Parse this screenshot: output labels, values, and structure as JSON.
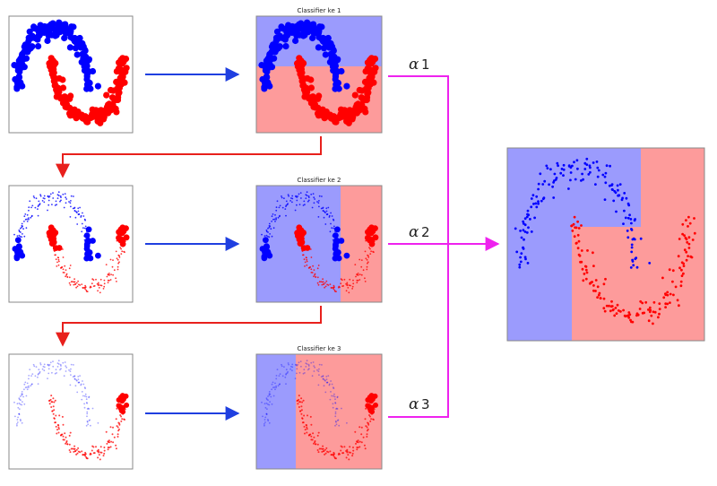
{
  "diagram": {
    "panels": [
      {
        "id": "input-1",
        "title": "",
        "style": "large",
        "region": "none"
      },
      {
        "id": "classifier-1",
        "title": "Classifier ke 1",
        "style": "large",
        "region": "horizontal"
      },
      {
        "id": "input-2",
        "title": "",
        "style": "weighted-2",
        "region": "none"
      },
      {
        "id": "classifier-2",
        "title": "Classifier ke 2",
        "style": "weighted-2",
        "region": "vertical-right"
      },
      {
        "id": "input-3",
        "title": "",
        "style": "weighted-3",
        "region": "none"
      },
      {
        "id": "classifier-3",
        "title": "Classifier ke 3",
        "style": "weighted-3",
        "region": "vertical-left"
      },
      {
        "id": "final",
        "title": "",
        "style": "final",
        "region": "step"
      }
    ],
    "weights": [
      {
        "symbol": "α",
        "index": "1"
      },
      {
        "symbol": "α",
        "index": "2"
      },
      {
        "symbol": "α",
        "index": "3"
      }
    ],
    "colors": {
      "class_a": "#0000ff",
      "class_b": "#ff0000",
      "region_a": "#9b9bfd",
      "region_b": "#fd9b9b",
      "arrow_flow": "#1f3fe0",
      "arrow_feedback": "#e8201c",
      "arrow_combine": "#ee22ee",
      "frame": "#888888"
    }
  }
}
